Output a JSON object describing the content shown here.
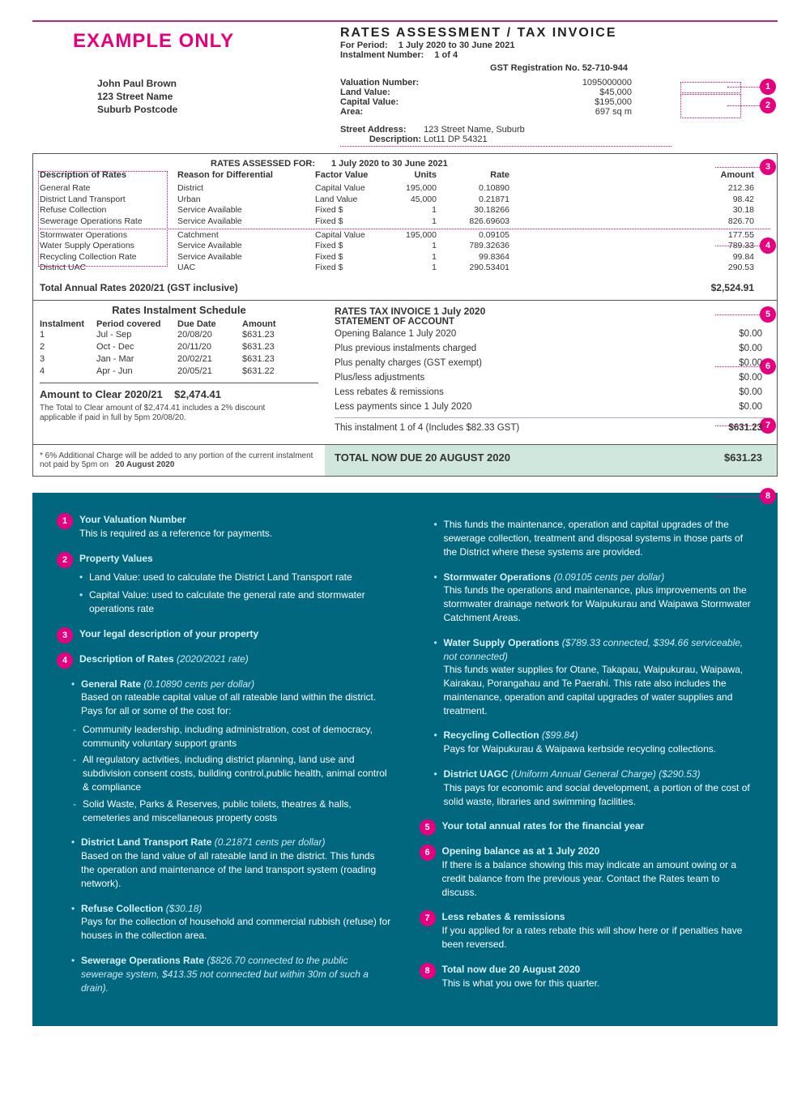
{
  "colors": {
    "pink": "#e6007e",
    "teal": "#00677f",
    "shadeBlue": "#dbe3ef",
    "shadeGreen": "#cfe7dd"
  },
  "header": {
    "stamp": "EXAMPLE ONLY",
    "addressee": {
      "name": "John Paul Brown",
      "street": "123 Street Name",
      "suburb": "Suburb Postcode"
    },
    "title": "RATES ASSESSMENT / TAX INVOICE",
    "period_lbl": "For Period:",
    "period_val": "1 July 2020   to   30 June 2021",
    "instalment_lbl": "Instalment Number:",
    "instalment_val": "1 of 4",
    "gst_reg": "GST Registration No. 52-710-944",
    "valuation_lbl": "Valuation Number:",
    "valuation_val": "1095000000",
    "land_lbl": "Land Value:",
    "land_val": "$45,000",
    "capital_lbl": "Capital Value:",
    "capital_val": "$195,000",
    "area_lbl": "Area:",
    "area_val": "697 sq m",
    "street_addr_lbl": "Street Address:",
    "street_addr_val": "123 Street Name, Suburb",
    "desc_lbl": "Description:",
    "desc_val": "Lot11 DP 54321"
  },
  "rates": {
    "assessed_for_lbl": "RATES ASSESSED FOR:",
    "assessed_for_period": "1 July 2020   to   30 June 2021",
    "columns": {
      "desc": "Description of Rates",
      "reason": "Reason for Differential",
      "factor": "Factor Value",
      "units": "Units",
      "rate": "Rate",
      "amount": "Amount"
    },
    "rows": [
      {
        "desc": "General Rate",
        "reason": "District",
        "factor": "Capital Value",
        "units": "195,000",
        "rate": "0.10890",
        "amount": "212.36"
      },
      {
        "desc": "District Land Transport",
        "reason": "Urban",
        "factor": "Land Value",
        "units": "45,000",
        "rate": "0.21871",
        "amount": "98.42"
      },
      {
        "desc": "Refuse Collection",
        "reason": "Service Available",
        "factor": "Fixed $",
        "units": "1",
        "rate": "30.18266",
        "amount": "30.18"
      },
      {
        "desc": "Sewerage Operations Rate",
        "reason": "Service Available",
        "factor": "Fixed $",
        "units": "1",
        "rate": "826.69603",
        "amount": "826.70"
      },
      {
        "desc": "Stormwater Operations",
        "reason": "Catchment",
        "factor": "Capital Value",
        "units": "195,000",
        "rate": "0.09105",
        "amount": "177.55"
      },
      {
        "desc": "Water Supply Operations",
        "reason": "Service Available",
        "factor": "Fixed $",
        "units": "1",
        "rate": "789.32636",
        "amount": "789.33"
      },
      {
        "desc": "Recycling Collection Rate",
        "reason": "Service Available",
        "factor": "Fixed $",
        "units": "1",
        "rate": "99.8364",
        "amount": "99.84"
      },
      {
        "desc": "District UAC",
        "reason": "UAC",
        "factor": "Fixed $",
        "units": "1",
        "rate": "290.53401",
        "amount": "290.53"
      }
    ],
    "total_lbl": "Total Annual Rates 2020/21   (GST inclusive)",
    "total_val": "$2,524.91"
  },
  "schedule": {
    "title": "Rates Instalment Schedule",
    "cols": {
      "inst": "Instalment",
      "period": "Period covered",
      "due": "Due Date",
      "amount": "Amount"
    },
    "rows": [
      {
        "inst": "1",
        "period": "Jul - Sep",
        "due": "20/08/20",
        "amount": "$631.23"
      },
      {
        "inst": "2",
        "period": "Oct - Dec",
        "due": "20/11/20",
        "amount": "$631.23"
      },
      {
        "inst": "3",
        "period": "Jan - Mar",
        "due": "20/02/21",
        "amount": "$631.23"
      },
      {
        "inst": "4",
        "period": "Apr - Jun",
        "due": "20/05/21",
        "amount": "$631.22"
      }
    ],
    "clear_lbl": "Amount to Clear  2020/21",
    "clear_val": "$2,474.41",
    "clear_note": "The Total to Clear amount of $2,474.41 includes a 2% discount applicable if paid in full by 5pm 20/08/20."
  },
  "statement": {
    "title1": "RATES TAX INVOICE    1 July 2020",
    "title2": "STATEMENT OF ACCOUNT",
    "lines": [
      {
        "k": "Opening Balance 1 July 2020",
        "v": "$0.00"
      },
      {
        "k": "Plus previous instalments charged",
        "v": "$0.00"
      },
      {
        "k": "Plus penalty charges (GST exempt)",
        "v": "$0.00"
      },
      {
        "k": "Plus/less adjustments",
        "v": "$0.00"
      },
      {
        "k": "Less rebates & remissions",
        "v": "$0.00"
      },
      {
        "k": "Less payments since 1 July 2020",
        "v": "$0.00"
      }
    ],
    "inst_line_k": "This instalment 1 of 4 (Includes $82.33 GST)",
    "inst_line_v": "$631.23",
    "total_due_k": "TOTAL NOW DUE 20 August 2020",
    "total_due_v": "$631.23"
  },
  "surcharge": {
    "text": "*   6% Additional Charge will be added to any portion of the current instalment not paid by 5pm on",
    "date": "20 August 2020"
  },
  "explain": {
    "items": [
      {
        "n": "1",
        "title": "Your Valuation Number",
        "body": "This is required as a reference for payments."
      },
      {
        "n": "2",
        "title": "Property Values",
        "bullets": [
          "Land Value: used to calculate the District Land Transport rate",
          "Capital Value: used to calculate the general rate and stormwater operations rate"
        ]
      },
      {
        "n": "3",
        "title": "Your legal description of your property"
      },
      {
        "n": "4",
        "title": "Description of Rates",
        "sub": "(2020/2021 rate)"
      }
    ],
    "rate_details": {
      "general": {
        "title": "General Rate",
        "sub": "(0.10890 cents per dollar)",
        "intro": "Based on rateable capital value of all rateable land within the district. Pays for all or some of the cost for:",
        "dashes": [
          "Community leadership, including administration, cost of democracy, community voluntary support grants",
          "All regulatory activities, including district planning, land use and subdivision consent costs, building control,public health, animal control & compliance",
          "Solid Waste, Parks & Reserves, public toilets, theatres & halls, cemeteries and miscellaneous property costs"
        ]
      },
      "dlt": {
        "title": "District Land Transport Rate",
        "sub": "(0.21871 cents per dollar)",
        "body": "Based on the land value of all rateable land in the district. This funds the operation and maintenance of the land transport system (roading network)."
      },
      "refuse": {
        "title": "Refuse Collection",
        "sub": "($30.18)",
        "body": "Pays for the collection of household and commercial rubbish (refuse) for houses in the collection area."
      },
      "sewerage": {
        "title": "Sewerage Operations Rate",
        "sub": "($826.70 connected to the public sewerage system, $413.35 not connected but within 30m of such a drain).",
        "cont": "This funds the maintenance, operation and capital upgrades of the sewerage collection, treatment and disposal systems in those parts of the District where these systems are provided."
      },
      "storm": {
        "title": "Stormwater Operations",
        "sub": "(0.09105 cents per dollar)",
        "body": "This funds the operations and maintenance, plus improvements on the stormwater drainage network for Waipukurau and Waipawa Stormwater Catchment Areas."
      },
      "water": {
        "title": "Water Supply Operations",
        "sub": "($789.33 connected, $394.66 serviceable, not connected)",
        "body": "This funds water supplies for Otane, Takapau, Waipukurau, Waipawa, Kairakau, Porangahau and Te Paerahi. This rate also includes the maintenance, operation and capital upgrades of water supplies and treatment."
      },
      "recycling": {
        "title": "Recycling Collection",
        "sub": "($99.84)",
        "body": "Pays for Waipukurau & Waipawa kerbside recycling collections."
      },
      "uagc": {
        "title": "District UAGC",
        "sub": "(Uniform Annual General Charge) ($290.53)",
        "body": "This pays for economic and social development, a portion of the cost of solid waste, libraries and swimming facilities."
      }
    },
    "tail": [
      {
        "n": "5",
        "title": "Your total annual rates for the financial year"
      },
      {
        "n": "6",
        "title": "Opening balance as at 1 July 2020",
        "body": "If there is a balance showing this may indicate an amount owing or a credit balance from the previous year. Contact the Rates team to discuss."
      },
      {
        "n": "7",
        "title": "Less rebates & remissions",
        "body": "If you applied for a rates rebate this will show here or if penalties have been reversed."
      },
      {
        "n": "8",
        "title": "Total now due 20 August 2020",
        "body": "This is what you owe for this quarter."
      }
    ]
  }
}
